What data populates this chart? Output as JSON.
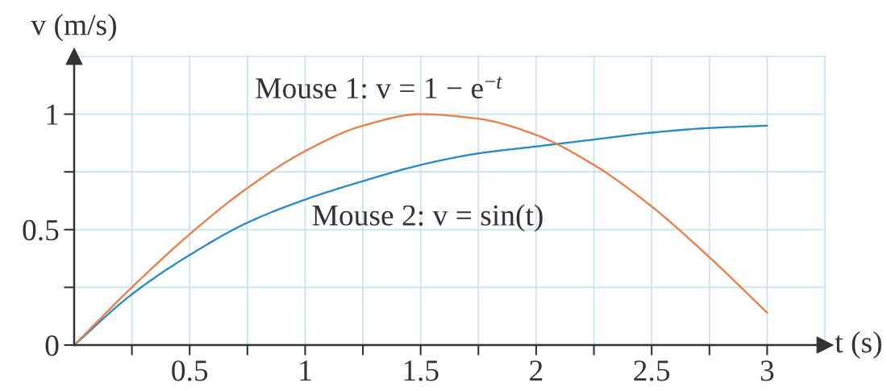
{
  "chart_data": {
    "type": "line",
    "xlabel": "t (s)",
    "ylabel": "v (m/s)",
    "x": [
      0,
      0.25,
      0.5,
      0.75,
      1,
      1.25,
      1.5,
      1.75,
      2,
      2.25,
      2.5,
      2.75,
      3
    ],
    "series": [
      {
        "color": "#2b8cc4",
        "values": [
          0,
          0.22,
          0.39,
          0.53,
          0.63,
          0.71,
          0.78,
          0.83,
          0.86,
          0.89,
          0.92,
          0.94,
          0.95
        ]
      },
      {
        "color": "#e8804c",
        "values": [
          0,
          0.25,
          0.48,
          0.68,
          0.84,
          0.95,
          1.0,
          0.98,
          0.91,
          0.78,
          0.6,
          0.38,
          0.14
        ]
      }
    ],
    "annotations": [
      "Mouse 1: v = 1 − e$^{−t}$",
      "Mouse 2: v = sin(t)"
    ],
    "xlim": [
      0,
      3.25
    ],
    "ylim": [
      0,
      1.25
    ],
    "xticks": [
      {
        "value": 0.25,
        "label": null
      },
      0.5,
      {
        "value": 0.75,
        "label": null
      },
      1,
      {
        "value": 1.25,
        "label": null
      },
      1.5,
      {
        "value": 1.75,
        "label": null
      },
      2,
      {
        "value": 2.25,
        "label": null
      },
      2.5,
      {
        "value": 2.75,
        "label": null
      },
      3
    ],
    "yticks": [
      0,
      {
        "value": 0.25,
        "label": null
      },
      0.5,
      {
        "value": 0.75,
        "label": null
      },
      1
    ],
    "grid": true
  }
}
